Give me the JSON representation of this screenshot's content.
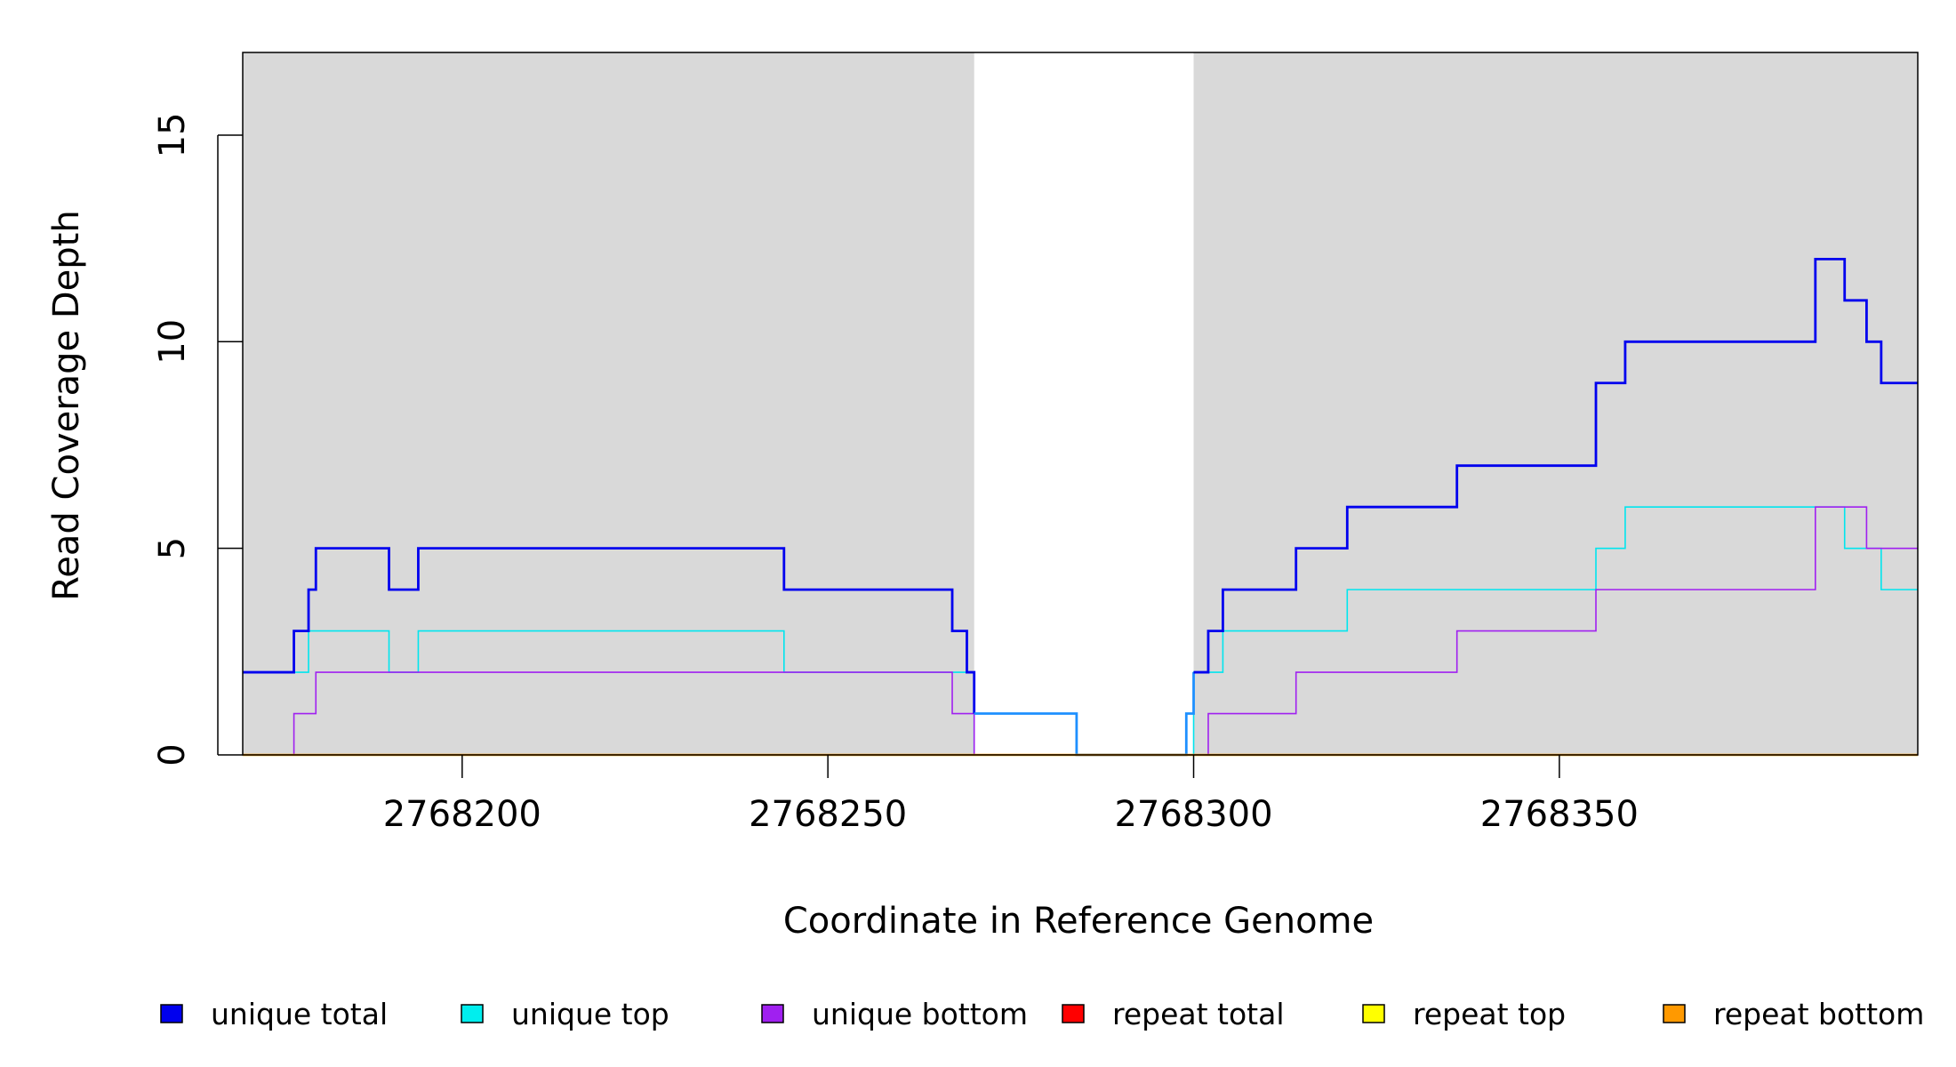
{
  "chart_data": {
    "type": "line",
    "ylabel": "Read Coverage Depth",
    "xlabel": "Coordinate in Reference Genome",
    "xlim": [
      2768170,
      2768399
    ],
    "ylim": [
      0,
      17
    ],
    "x_ticks": [
      2768200,
      2768250,
      2768300,
      2768350
    ],
    "y_ticks": [
      0,
      5,
      10,
      15
    ],
    "grid": false,
    "shaded_regions": [
      {
        "from": 2768170,
        "to": 2768270,
        "color": "#d9d9d9"
      },
      {
        "from": 2768300,
        "to": 2768399,
        "color": "#d9d9d9"
      }
    ],
    "gap_region": {
      "from": 2768270,
      "to": 2768300
    },
    "series": [
      {
        "name": "unique total",
        "color": "#0000ee",
        "width": 2.8,
        "steps": [
          [
            2768170,
            2
          ],
          [
            2768177,
            3
          ],
          [
            2768179,
            4
          ],
          [
            2768180,
            5
          ],
          [
            2768190,
            4
          ],
          [
            2768194,
            5
          ],
          [
            2768244,
            4
          ],
          [
            2768267,
            3
          ],
          [
            2768269,
            2
          ],
          [
            2768270,
            1
          ]
        ]
      },
      {
        "name": "unique total",
        "color": "#1e90ff",
        "width": 2.8,
        "steps": [
          [
            2768270,
            1
          ],
          [
            2768284,
            0
          ],
          [
            2768299,
            1
          ],
          [
            2768300,
            2
          ]
        ]
      },
      {
        "name": "unique total",
        "color": "#0000ee",
        "width": 2.8,
        "steps": [
          [
            2768300,
            2
          ],
          [
            2768302,
            3
          ],
          [
            2768304,
            4
          ],
          [
            2768314,
            5
          ],
          [
            2768321,
            6
          ],
          [
            2768336,
            7
          ],
          [
            2768355,
            9
          ],
          [
            2768359,
            10
          ],
          [
            2768385,
            12
          ],
          [
            2768389,
            11
          ],
          [
            2768392,
            10
          ],
          [
            2768394,
            9
          ],
          [
            2768399,
            9
          ]
        ]
      },
      {
        "name": "unique top",
        "color": "#00e5ee",
        "width": 1.6,
        "steps": [
          [
            2768170,
            2
          ],
          [
            2768179,
            3
          ],
          [
            2768190,
            2
          ],
          [
            2768194,
            3
          ],
          [
            2768244,
            2
          ],
          [
            2768270,
            0
          ],
          [
            2768300,
            2
          ],
          [
            2768304,
            3
          ],
          [
            2768321,
            4
          ],
          [
            2768355,
            5
          ],
          [
            2768359,
            6
          ],
          [
            2768389,
            5
          ],
          [
            2768394,
            4
          ],
          [
            2768399,
            4
          ]
        ]
      },
      {
        "name": "unique bottom",
        "color": "#a020f0",
        "width": 1.6,
        "steps": [
          [
            2768170,
            0
          ],
          [
            2768177,
            1
          ],
          [
            2768180,
            2
          ],
          [
            2768267,
            1
          ],
          [
            2768270,
            0
          ],
          [
            2768302,
            1
          ],
          [
            2768314,
            2
          ],
          [
            2768336,
            3
          ],
          [
            2768355,
            4
          ],
          [
            2768385,
            6
          ],
          [
            2768392,
            5
          ],
          [
            2768399,
            5
          ]
        ]
      },
      {
        "name": "repeat total",
        "color": "#ff0000",
        "width": 1.6,
        "steps": [
          [
            2768170,
            0
          ],
          [
            2768399,
            0
          ]
        ]
      },
      {
        "name": "repeat top",
        "color": "#ffff00",
        "width": 1.6,
        "steps": [
          [
            2768170,
            0
          ],
          [
            2768399,
            0
          ]
        ]
      },
      {
        "name": "repeat bottom",
        "color": "#ff9900",
        "width": 2.4,
        "steps": [
          [
            2768170,
            0
          ],
          [
            2768399,
            0
          ]
        ]
      }
    ],
    "legend": {
      "placement": "bottom",
      "items": [
        {
          "label": "unique total",
          "color": "#0000ee"
        },
        {
          "label": "unique top",
          "color": "#00eeee"
        },
        {
          "label": "unique bottom",
          "color": "#a020f0"
        },
        {
          "label": "repeat total",
          "color": "#ff0000"
        },
        {
          "label": "repeat top",
          "color": "#ffff00"
        },
        {
          "label": "repeat bottom",
          "color": "#ff9900"
        }
      ]
    }
  }
}
